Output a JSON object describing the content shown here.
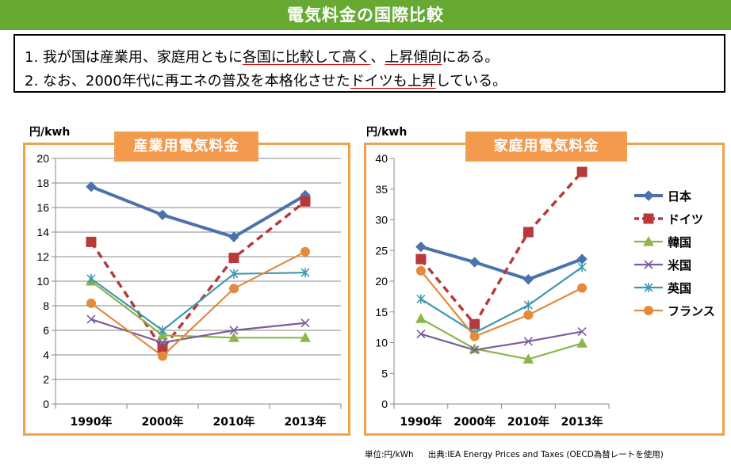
{
  "header": {
    "title": "電気料金の国際比較"
  },
  "summary": {
    "line1": {
      "prefix": "1. 我が国は産業用、家庭用ともに",
      "u1": "各国に比較して高く",
      "mid": "、",
      "u2": "上昇傾向",
      "suffix": "にある。"
    },
    "line2": {
      "prefix": "2. なお、2000年代に再エネの普及を本格化させた",
      "u1": "ドイツも上昇",
      "suffix": "している。"
    }
  },
  "footer": {
    "unit_note": "単位:円/kWh",
    "source_note": "出典:IEA Energy Prices and Taxes (OECD為替レートを使用)"
  },
  "chart_data": [
    {
      "type": "line",
      "title": "産業用電気料金",
      "ylabel": "円/kwh",
      "categories": [
        "1990年",
        "2000年",
        "2010年",
        "2013年"
      ],
      "ylim": [
        0,
        20
      ],
      "yticks": [
        0,
        2,
        4,
        6,
        8,
        10,
        12,
        14,
        16,
        18,
        20
      ],
      "grid": true,
      "series": [
        {
          "name": "日本",
          "color": "#4a72ac",
          "marker": "diamond",
          "dash": false,
          "width": 4,
          "values": [
            17.7,
            15.4,
            13.6,
            17.0
          ]
        },
        {
          "name": "ドイツ",
          "color": "#b8393a",
          "marker": "square",
          "dash": true,
          "width": 3.5,
          "values": [
            13.2,
            4.5,
            11.9,
            16.5
          ]
        },
        {
          "name": "韓国",
          "color": "#8cb64a",
          "marker": "triangle",
          "dash": false,
          "width": 2.2,
          "values": [
            10.0,
            5.6,
            5.4,
            5.4
          ]
        },
        {
          "name": "米国",
          "color": "#7b5c9c",
          "marker": "x",
          "dash": false,
          "width": 2.2,
          "values": [
            6.9,
            5.0,
            6.0,
            6.6
          ]
        },
        {
          "name": "英国",
          "color": "#3e99b0",
          "marker": "star",
          "dash": false,
          "width": 2.2,
          "values": [
            10.2,
            6.0,
            10.6,
            10.7
          ]
        },
        {
          "name": "フランス",
          "color": "#e48a3c",
          "marker": "circle",
          "dash": false,
          "width": 2.2,
          "values": [
            8.2,
            3.9,
            9.4,
            12.4
          ]
        }
      ]
    },
    {
      "type": "line",
      "title": "家庭用電気料金",
      "ylabel": "円/kwh",
      "categories": [
        "1990年",
        "2000年",
        "2010年",
        "2013年"
      ],
      "ylim": [
        0,
        40
      ],
      "yticks": [
        0,
        5,
        10,
        15,
        20,
        25,
        30,
        35,
        40
      ],
      "grid": false,
      "legend": "right",
      "series": [
        {
          "name": "日本",
          "color": "#4a72ac",
          "marker": "diamond",
          "dash": false,
          "width": 4,
          "values": [
            25.6,
            23.1,
            20.3,
            23.6
          ]
        },
        {
          "name": "ドイツ",
          "color": "#b8393a",
          "marker": "square",
          "dash": true,
          "width": 3.5,
          "values": [
            23.6,
            13.0,
            28.0,
            37.8
          ]
        },
        {
          "name": "韓国",
          "color": "#8cb64a",
          "marker": "triangle",
          "dash": false,
          "width": 2.2,
          "values": [
            13.9,
            9.0,
            7.3,
            9.9
          ]
        },
        {
          "name": "米国",
          "color": "#7b5c9c",
          "marker": "x",
          "dash": false,
          "width": 2.2,
          "values": [
            11.4,
            8.8,
            10.2,
            11.8
          ]
        },
        {
          "name": "英国",
          "color": "#3e99b0",
          "marker": "star",
          "dash": false,
          "width": 2.2,
          "values": [
            17.1,
            11.6,
            16.1,
            22.3
          ]
        },
        {
          "name": "フランス",
          "color": "#e48a3c",
          "marker": "circle",
          "dash": false,
          "width": 2.2,
          "values": [
            21.7,
            11.0,
            14.5,
            18.9
          ]
        }
      ]
    }
  ]
}
